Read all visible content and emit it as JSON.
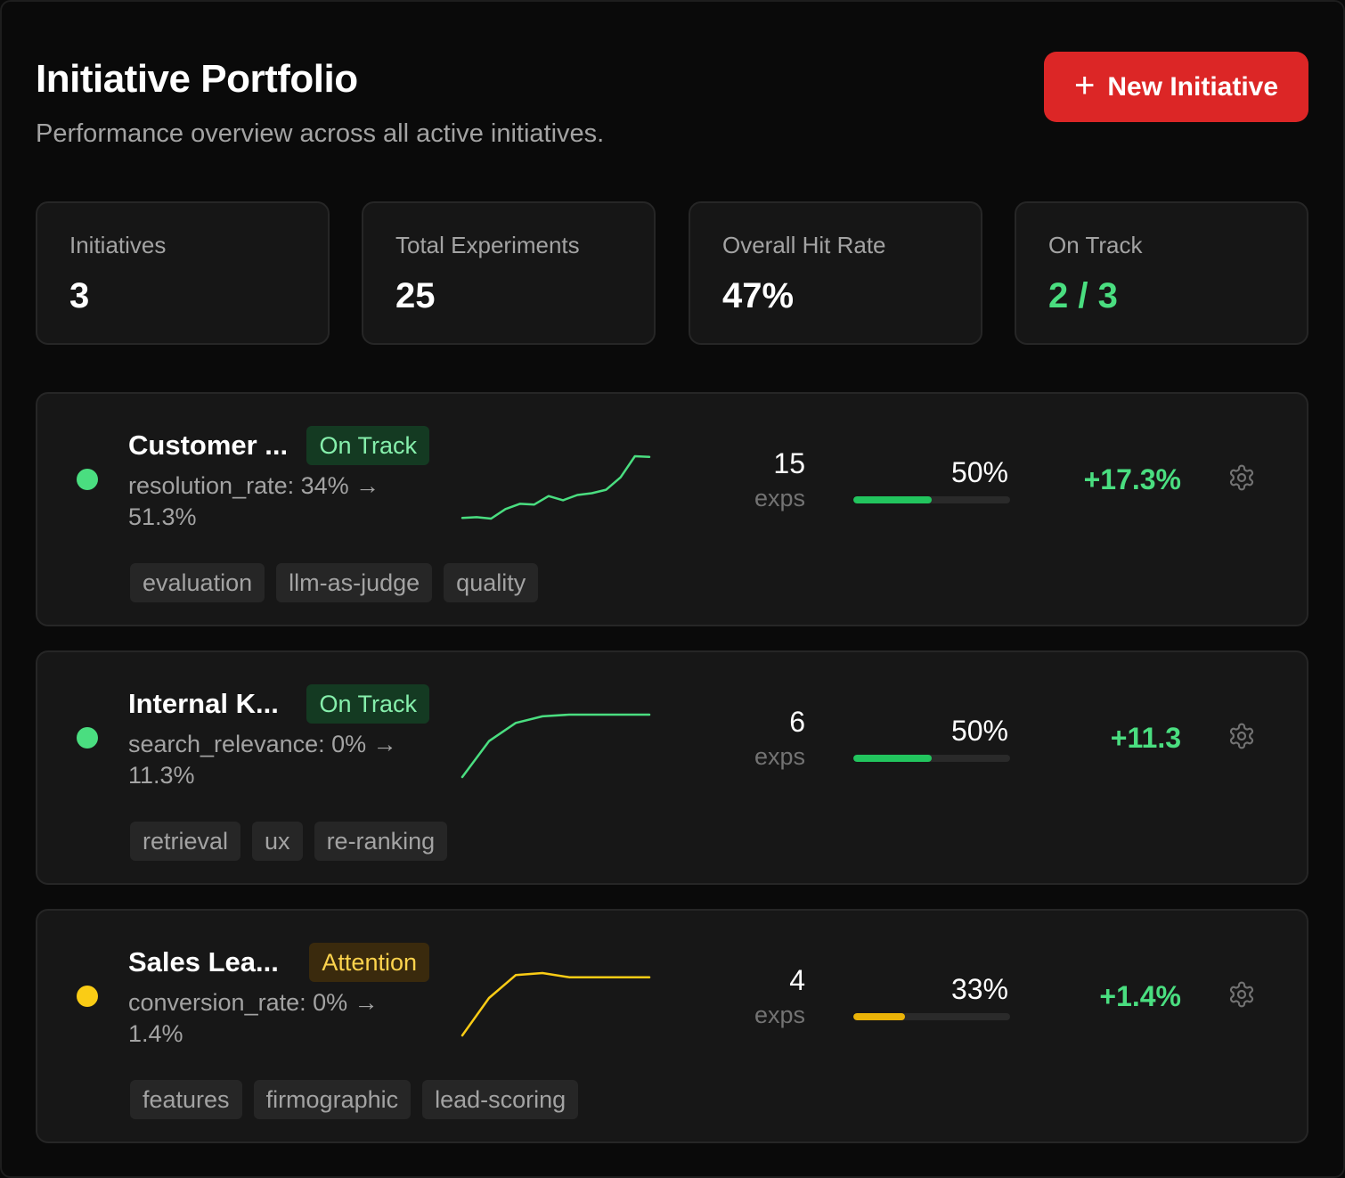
{
  "header": {
    "title": "Initiative Portfolio",
    "subtitle": "Performance overview across all active initiatives.",
    "new_button_label": "New Initiative",
    "new_button_icon": "plus-icon"
  },
  "stats": [
    {
      "label": "Initiatives",
      "value": "3"
    },
    {
      "label": "Total Experiments",
      "value": "25"
    },
    {
      "label": "Overall Hit Rate",
      "value": "47%"
    },
    {
      "label": "On Track",
      "value": "2 / 3"
    }
  ],
  "colors": {
    "accent_red": "#dc2626",
    "green": "#4ade80",
    "green_bar": "#22c55e",
    "yellow": "#facc15",
    "yellow_bar": "#eab308"
  },
  "initiatives": [
    {
      "name": "Customer ...",
      "status": "On Track",
      "metric": "resolution_rate: 34% → 51.3%",
      "exps": "15",
      "exps_label": "exps",
      "hit_rate": "50%",
      "hit_rate_fraction": 0.5,
      "delta": "+17.3%",
      "tags": [
        "evaluation",
        "llm-as-judge",
        "quality"
      ],
      "trend": [
        34,
        34.2,
        33.8,
        36.5,
        38,
        37.8,
        40.2,
        39,
        40.5,
        41,
        42,
        45.5,
        51.5,
        51.3
      ]
    },
    {
      "name": "Internal K...",
      "status": "On Track",
      "metric": "search_relevance: 0% → 11.3%",
      "exps": "6",
      "exps_label": "exps",
      "hit_rate": "50%",
      "hit_rate_fraction": 0.5,
      "delta": "+11.3",
      "tags": [
        "retrieval",
        "ux",
        "re-ranking"
      ],
      "trend": [
        0,
        6.5,
        9.8,
        11,
        11.3,
        11.3,
        11.3,
        11.3
      ]
    },
    {
      "name": "Sales Lea...",
      "status": "Attention",
      "metric": "conversion_rate: 0% → 1.4%",
      "exps": "4",
      "exps_label": "exps",
      "hit_rate": "33%",
      "hit_rate_fraction": 0.33,
      "delta": "+1.4%",
      "tags": [
        "features",
        "firmographic",
        "lead-scoring"
      ],
      "trend": [
        0,
        0.9,
        1.45,
        1.5,
        1.4,
        1.4,
        1.4,
        1.4
      ]
    }
  ]
}
